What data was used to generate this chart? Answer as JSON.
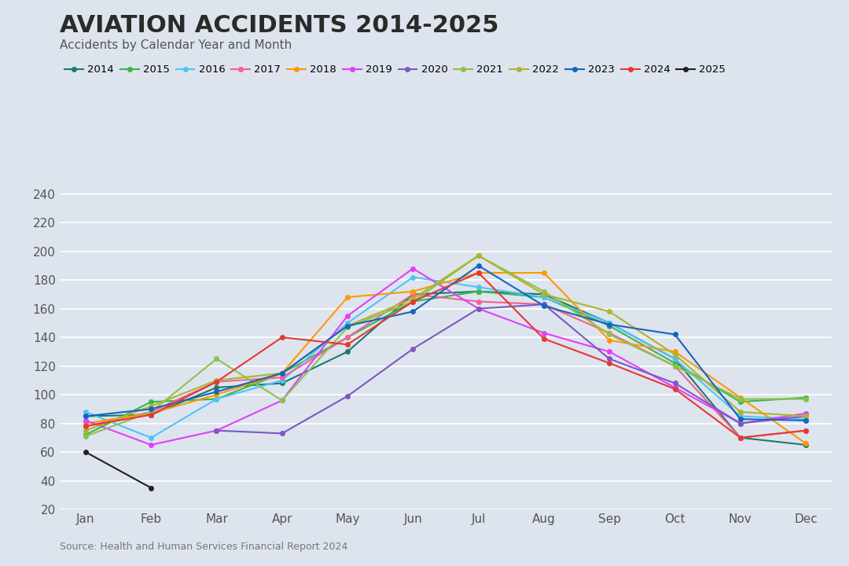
{
  "title": "AVIATION ACCIDENTS 2014-2025",
  "subtitle": "Accidents by Calendar Year and Month",
  "source": "Source: Health and Human Services Financial Report 2024",
  "months": [
    "Jan",
    "Feb",
    "Mar",
    "Apr",
    "May",
    "Jun",
    "Jul",
    "Aug",
    "Sep",
    "Oct",
    "Nov",
    "Dec"
  ],
  "years": [
    "2014",
    "2015",
    "2016",
    "2017",
    "2018",
    "2019",
    "2020",
    "2021",
    "2022",
    "2023",
    "2024",
    "2025"
  ],
  "colors": {
    "2014": "#1a7a6e",
    "2015": "#3cb54a",
    "2016": "#4fc3f7",
    "2017": "#f06292",
    "2018": "#ff9800",
    "2019": "#e040fb",
    "2020": "#7e57c2",
    "2021": "#8bc34a",
    "2022": "#afb42b",
    "2023": "#1565c0",
    "2024": "#e53935",
    "2025": "#212121"
  },
  "data": {
    "2014": [
      85,
      86,
      105,
      108,
      130,
      170,
      172,
      170,
      150,
      125,
      70,
      65
    ],
    "2015": [
      72,
      95,
      97,
      115,
      140,
      165,
      172,
      168,
      148,
      122,
      95,
      98
    ],
    "2016": [
      88,
      70,
      97,
      110,
      150,
      182,
      175,
      168,
      150,
      125,
      85,
      83
    ],
    "2017": [
      78,
      88,
      109,
      112,
      140,
      170,
      165,
      163,
      143,
      120,
      70,
      75
    ],
    "2018": [
      80,
      87,
      100,
      115,
      168,
      172,
      185,
      185,
      138,
      130,
      98,
      66
    ],
    "2019": [
      82,
      65,
      75,
      96,
      155,
      188,
      160,
      143,
      130,
      105,
      80,
      87
    ],
    "2020": [
      null,
      null,
      75,
      73,
      99,
      132,
      160,
      163,
      125,
      108,
      80,
      85
    ],
    "2021": [
      71,
      88,
      125,
      96,
      147,
      165,
      197,
      172,
      142,
      120,
      97,
      97
    ],
    "2022": [
      75,
      92,
      110,
      115,
      148,
      167,
      197,
      170,
      158,
      128,
      88,
      85
    ],
    "2023": [
      85,
      90,
      102,
      115,
      148,
      158,
      190,
      162,
      149,
      142,
      83,
      82
    ],
    "2024": [
      78,
      86,
      109,
      140,
      135,
      165,
      185,
      139,
      122,
      104,
      70,
      75
    ],
    "2025": [
      60,
      35,
      null,
      null,
      null,
      null,
      null,
      null,
      null,
      null,
      null,
      null
    ]
  },
  "ylim": [
    20,
    245
  ],
  "yticks": [
    20,
    40,
    60,
    80,
    100,
    120,
    140,
    160,
    180,
    200,
    220,
    240
  ],
  "background_color": "#dde4ee",
  "plot_bg_color": "#dde4ee",
  "grid_color": "#ffffff",
  "title_fontsize": 22,
  "subtitle_fontsize": 11,
  "tick_fontsize": 11,
  "source_fontsize": 9
}
